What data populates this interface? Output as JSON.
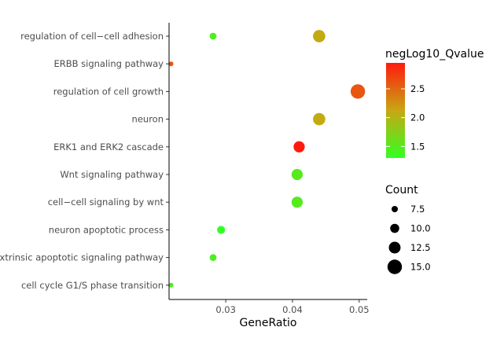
{
  "chart_data": {
    "type": "scatter",
    "title": "",
    "xlabel": "GeneRatio",
    "ylabel": "",
    "xlim": [
      0.0215,
      0.0512
    ],
    "xticks": [
      0.03,
      0.04,
      0.05
    ],
    "xtick_labels": [
      "0.03",
      "0.04",
      "0.05"
    ],
    "grid": false,
    "terms": [
      "regulation of cell−cell adhesion",
      "ERBB signaling pathway",
      "regulation of cell growth",
      "neuron",
      "ERK1 and ERK2 cascade",
      "Wnt signaling pathway",
      "cell−cell signaling by wnt",
      "neuron apoptotic process",
      "Extrinsic apoptotic signaling pathway",
      "cell cycle G1/S phase transition"
    ],
    "points": [
      {
        "term": "regulation of cell−cell adhesion",
        "gene_ratio": 0.0281,
        "count": 8,
        "negLog10_Qvalue": 1.45
      },
      {
        "term": "regulation of cell−cell adhesion",
        "gene_ratio": 0.044,
        "count": 13,
        "negLog10_Qvalue": 2.1
      },
      {
        "term": "ERBB signaling pathway",
        "gene_ratio": 0.0218,
        "count": 6,
        "negLog10_Qvalue": 2.6
      },
      {
        "term": "regulation of cell growth",
        "gene_ratio": 0.0498,
        "count": 15,
        "negLog10_Qvalue": 2.6
      },
      {
        "term": "neuron",
        "gene_ratio": 0.044,
        "count": 13,
        "negLog10_Qvalue": 2.1
      },
      {
        "term": "ERK1 and ERK2 cascade",
        "gene_ratio": 0.041,
        "count": 12,
        "negLog10_Qvalue": 2.95
      },
      {
        "term": "Wnt signaling pathway",
        "gene_ratio": 0.0407,
        "count": 12,
        "negLog10_Qvalue": 1.5
      },
      {
        "term": "cell−cell signaling by wnt",
        "gene_ratio": 0.0407,
        "count": 12,
        "negLog10_Qvalue": 1.5
      },
      {
        "term": "neuron apoptotic process",
        "gene_ratio": 0.0293,
        "count": 9,
        "negLog10_Qvalue": 1.3
      },
      {
        "term": "Extrinsic apoptotic signaling pathway",
        "gene_ratio": 0.0281,
        "count": 8,
        "negLog10_Qvalue": 1.45
      },
      {
        "term": "cell cycle G1/S phase transition",
        "gene_ratio": 0.0218,
        "count": 6,
        "negLog10_Qvalue": 1.45
      }
    ],
    "color_legend": {
      "title": "negLog10_Qvalue",
      "min": 1.3,
      "max": 2.95,
      "breaks": [
        1.5,
        2.0,
        2.5
      ],
      "labels": [
        "1.5",
        "2.0",
        "2.5"
      ],
      "low_color": "#33ff22",
      "mid_color": "#c8a712",
      "high_color": "#ff1a0e",
      "placement": "right"
    },
    "size_legend": {
      "title": "Count",
      "breaks": [
        7.5,
        10.0,
        12.5,
        15.0
      ],
      "labels": [
        "7.5",
        "10.0",
        "12.5",
        "15.0"
      ],
      "placement": "right"
    }
  }
}
